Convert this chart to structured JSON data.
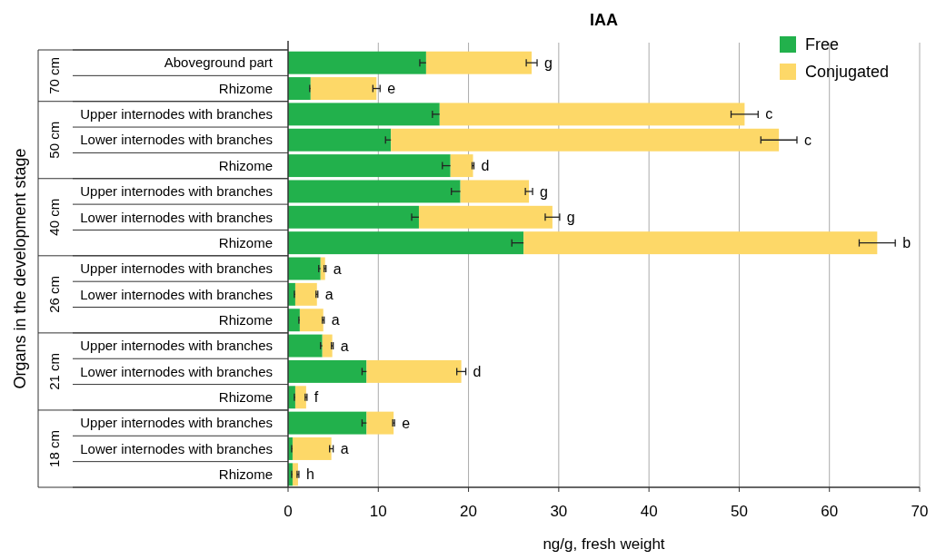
{
  "chart_data": {
    "type": "bar",
    "orientation": "horizontal",
    "stacked": true,
    "title": "IAA",
    "xlabel": "ng/g, fresh weight",
    "ylabel": "Organs in the development stage",
    "categories": [
      "Aboveground part",
      "Rhizome",
      "Upper internodes with branches",
      "Lower internodes with branches",
      "Rhizome",
      "Upper internodes with branches",
      "Lower internodes with branches",
      "Rhizome",
      "Upper internodes with branches",
      "Lower internodes with branches",
      "Rhizome",
      "Upper internodes with branches",
      "Lower internodes with branches",
      "Rhizome",
      "Upper internodes with branches",
      "Lower internodes with branches",
      "Rhizome"
    ],
    "series": [
      {
        "name": "Free",
        "color": "#22b14c",
        "values": [
          15.3,
          2.5,
          16.8,
          11.4,
          18.0,
          19.1,
          14.5,
          26.1,
          3.6,
          0.8,
          1.3,
          3.8,
          8.7,
          0.8,
          8.7,
          0.5,
          0.5
        ],
        "errors": [
          0.7,
          0.1,
          0.8,
          0.6,
          0.9,
          1.0,
          0.8,
          1.3,
          0.2,
          0.1,
          0.1,
          0.2,
          0.5,
          0.1,
          0.5,
          0.1,
          0.1
        ]
      },
      {
        "name": "Conjugated",
        "color": "#fdd868",
        "values": [
          11.7,
          7.3,
          33.8,
          43.0,
          2.5,
          7.6,
          14.8,
          39.2,
          0.5,
          2.4,
          2.6,
          1.1,
          10.5,
          1.2,
          3.0,
          4.3,
          0.6
        ],
        "errors": [
          0.6,
          0.4,
          1.5,
          2.0,
          0.1,
          0.4,
          0.8,
          2.0,
          0.1,
          0.1,
          0.1,
          0.1,
          0.5,
          0.1,
          0.1,
          0.2,
          0.1
        ],
        "value_labels": [
          "g",
          "e",
          "c",
          "c",
          "d",
          "g",
          "g",
          "b",
          "a",
          "a",
          "a",
          "a",
          "d",
          "f",
          "e",
          "a",
          "h"
        ]
      }
    ],
    "xlim": [
      0,
      70
    ],
    "xticks": [
      0,
      10,
      20,
      30,
      40,
      50,
      60,
      70
    ],
    "grid": "x",
    "legend": "top right",
    "annotations": [
      "70 cm",
      "50 cm",
      "40 cm",
      "26 cm",
      "21 cm",
      "18 cm"
    ]
  }
}
